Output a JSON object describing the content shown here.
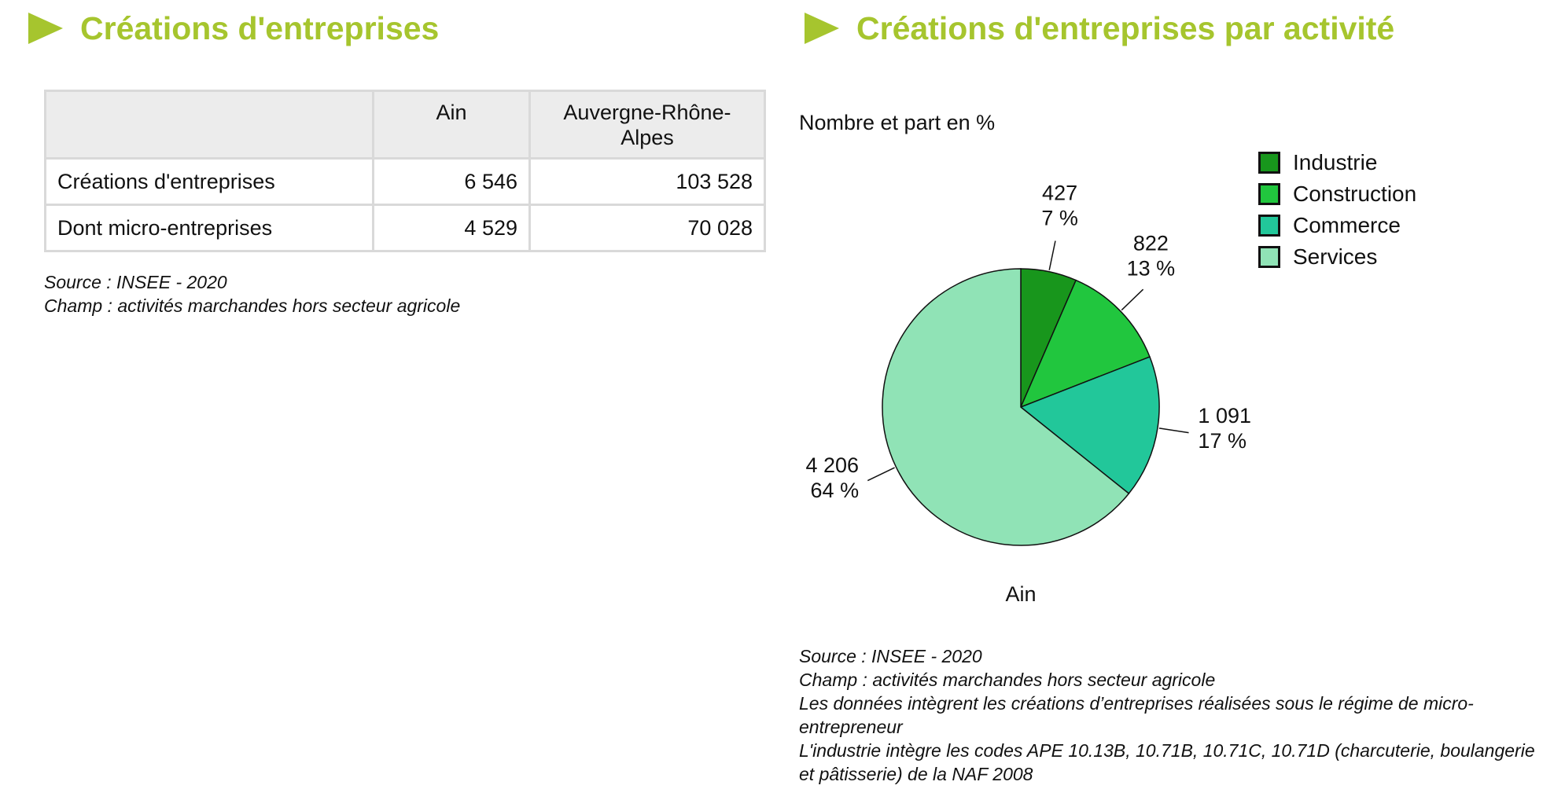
{
  "left_section": {
    "title": "Créations d'entreprises",
    "table": {
      "headers": [
        "",
        "Ain",
        "Auvergne-Rhône-Alpes"
      ],
      "rows": [
        [
          "Créations d'entreprises",
          "6 546",
          "103 528"
        ],
        [
          "Dont micro-entreprises",
          "4 529",
          "70 028"
        ]
      ]
    },
    "notes": [
      "Source : INSEE - 2020",
      "Champ : activités marchandes hors secteur agricole"
    ]
  },
  "right_section": {
    "title": "Créations d'entreprises par activité",
    "notes": [
      "Source : INSEE - 2020",
      "Champ : activités marchandes hors secteur agricole",
      "Les données intègrent les créations d’entreprises réalisées sous le régime de micro-entrepreneur",
      "L'industrie intègre les codes APE 10.13B, 10.71B, 10.71C, 10.71D (charcuterie, boulangerie et pâtisserie) de la NAF 2008"
    ]
  },
  "colors": {
    "title_green": "#a6c52e",
    "table_border": "#d9d9d9",
    "table_header_bg": "#ececec"
  },
  "chart_data": {
    "type": "pie",
    "title": "",
    "subtitle": "Nombre et part en %",
    "category_label": "Ain",
    "legend_position": "top-right",
    "slices": [
      {
        "name": "Industrie",
        "value": 427,
        "value_label": "427",
        "percent_label": "7 %",
        "color": "#18961c"
      },
      {
        "name": "Construction",
        "value": 822,
        "value_label": "822",
        "percent_label": "13 %",
        "color": "#21c63e"
      },
      {
        "name": "Commerce",
        "value": 1091,
        "value_label": "1 091",
        "percent_label": "17 %",
        "color": "#22c79a"
      },
      {
        "name": "Services",
        "value": 4206,
        "value_label": "4 206",
        "percent_label": "64 %",
        "color": "#90e3b6"
      }
    ]
  }
}
